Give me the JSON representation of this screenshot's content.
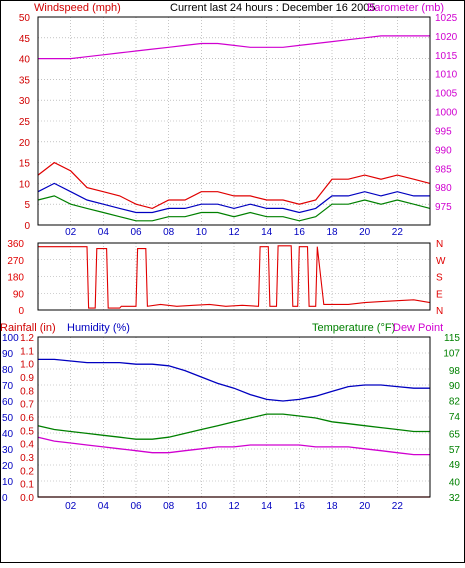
{
  "colors": {
    "wind": "#d00000",
    "wind_gust": "#e00000",
    "wind_avg": "#0000c0",
    "wind_low": "#008000",
    "barometer": "#d000d0",
    "direction": "#e00000",
    "humidity": "#0000c0",
    "temperature": "#008000",
    "dewpoint": "#d000d0",
    "rainfall": "#d00000",
    "grid": "#a0a0a0",
    "frame": "#000000"
  },
  "header": {
    "windspeed_label": "Windspeed (mph)",
    "title": "Current last 24 hours : December 16 2005",
    "barometer_label": "Barometer (mb)"
  },
  "direction_labels": [
    "N",
    "W",
    "S",
    "E",
    "N"
  ],
  "bottom_labels": {
    "rainfall": "Rainfall (in)",
    "humidity": "Humidity (%)",
    "temperature": "Temperature (°F)",
    "dewpoint": "Dew Point"
  },
  "chart_data": [
    {
      "type": "line",
      "title": "Current last 24 hours : December 16 2005",
      "x_ticks": [
        "02",
        "04",
        "06",
        "08",
        "10",
        "12",
        "14",
        "16",
        "18",
        "20",
        "22"
      ],
      "x_range_hours": [
        0,
        24
      ],
      "left_axis": {
        "label": "Windspeed (mph)",
        "ylim": [
          0,
          50
        ],
        "ticks": [
          0,
          5,
          10,
          15,
          20,
          25,
          30,
          35,
          40,
          45,
          50
        ]
      },
      "right_axis": {
        "label": "Barometer (mb)",
        "ylim": [
          970,
          1025
        ],
        "ticks": [
          975,
          980,
          985,
          990,
          995,
          1000,
          1005,
          1010,
          1015,
          1020,
          1025
        ]
      },
      "series": [
        {
          "name": "Windspeed (mph)",
          "axis": "left",
          "color_key": "wind_gust",
          "hours": [
            0,
            1,
            2,
            3,
            4,
            5,
            6,
            7,
            8,
            9,
            10,
            11,
            12,
            13,
            14,
            15,
            16,
            17,
            18,
            19,
            20,
            21,
            22,
            23,
            24
          ],
          "values": [
            12,
            15,
            13,
            9,
            8,
            7,
            5,
            4,
            6,
            6,
            8,
            8,
            7,
            7,
            6,
            6,
            5,
            6,
            11,
            11,
            12,
            11,
            12,
            11,
            10
          ]
        },
        {
          "axis": "left",
          "color_key": "wind_avg",
          "hours": [
            0,
            1,
            2,
            3,
            4,
            5,
            6,
            7,
            8,
            9,
            10,
            11,
            12,
            13,
            14,
            15,
            16,
            17,
            18,
            19,
            20,
            21,
            22,
            23,
            24
          ],
          "values": [
            8,
            10,
            8,
            6,
            5,
            4,
            3,
            3,
            4,
            4,
            5,
            5,
            4,
            5,
            4,
            4,
            3,
            4,
            7,
            7,
            8,
            7,
            8,
            7,
            7
          ]
        },
        {
          "axis": "left",
          "color_key": "wind_low",
          "hours": [
            0,
            1,
            2,
            3,
            4,
            5,
            6,
            7,
            8,
            9,
            10,
            11,
            12,
            13,
            14,
            15,
            16,
            17,
            18,
            19,
            20,
            21,
            22,
            23,
            24
          ],
          "values": [
            6,
            7,
            5,
            4,
            3,
            2,
            1,
            1,
            2,
            2,
            3,
            3,
            2,
            3,
            2,
            2,
            1,
            2,
            5,
            5,
            6,
            5,
            6,
            5,
            4
          ]
        },
        {
          "name": "Barometer (mb)",
          "axis": "right",
          "color_key": "barometer",
          "hours": [
            0,
            1,
            2,
            3,
            4,
            5,
            6,
            7,
            8,
            9,
            10,
            11,
            12,
            13,
            14,
            15,
            16,
            17,
            18,
            19,
            20,
            21,
            22,
            23,
            24
          ],
          "values": [
            1014,
            1014,
            1014,
            1014.5,
            1015,
            1015.5,
            1016,
            1016.5,
            1017,
            1017.5,
            1018,
            1018,
            1017.5,
            1017,
            1017,
            1017,
            1017.5,
            1018,
            1018.5,
            1019,
            1019.5,
            1020,
            1020,
            1020,
            1020
          ]
        }
      ]
    },
    {
      "type": "line",
      "x_ticks": [
        "02",
        "04",
        "06",
        "08",
        "10",
        "12",
        "14",
        "16",
        "18",
        "20",
        "22"
      ],
      "x_range_hours": [
        0,
        24
      ],
      "left_axis": {
        "ylim": [
          0,
          360
        ],
        "ticks": [
          0,
          90,
          180,
          270,
          360
        ]
      },
      "right_axis": {
        "ticks": [
          "N",
          "W",
          "S",
          "E",
          "N"
        ]
      },
      "series": [
        {
          "color_key": "direction",
          "hours": [
            0,
            3,
            3.1,
            3.5,
            3.6,
            4.2,
            4.3,
            5.0,
            5.1,
            6.0,
            6.1,
            6.6,
            6.7,
            7.5,
            8.5,
            9.5,
            10.5,
            11.5,
            12.5,
            13.5,
            13.6,
            14.1,
            14.2,
            14.6,
            14.7,
            15.5,
            15.6,
            15.9,
            16.0,
            16.5,
            16.6,
            17.0,
            17.1,
            17.5,
            19.0,
            20.0,
            21.0,
            22.0,
            23.0,
            24.0
          ],
          "values": [
            340,
            340,
            10,
            10,
            330,
            330,
            10,
            10,
            20,
            20,
            330,
            330,
            20,
            30,
            20,
            25,
            30,
            20,
            25,
            20,
            340,
            340,
            20,
            20,
            345,
            345,
            20,
            20,
            340,
            340,
            20,
            20,
            340,
            30,
            30,
            40,
            45,
            50,
            55,
            40
          ]
        }
      ]
    },
    {
      "type": "line",
      "x_ticks": [
        "02",
        "04",
        "06",
        "08",
        "10",
        "12",
        "14",
        "16",
        "18",
        "20",
        "22"
      ],
      "x_range_hours": [
        0,
        24
      ],
      "humidity_axis": {
        "label": "Humidity (%)",
        "ylim": [
          0,
          100
        ],
        "ticks": [
          0,
          10,
          20,
          30,
          40,
          50,
          60,
          70,
          80,
          90,
          100
        ]
      },
      "rainfall_axis": {
        "label": "Rainfall (in)",
        "ylim": [
          0.0,
          1.2
        ],
        "ticks": [
          "0.0",
          "0.1",
          "0.2",
          "0.3",
          "0.4",
          "0.5",
          "0.6",
          "0.7",
          "0.8",
          "0.9",
          "1.0",
          "1.1",
          "1.2"
        ]
      },
      "temperature_axis": {
        "label": "Temperature (°F)",
        "ylim": [
          32,
          115
        ],
        "ticks": [
          32,
          40,
          49,
          57,
          65,
          74,
          82,
          90,
          98,
          107,
          115
        ]
      },
      "series": [
        {
          "name": "Humidity (%)",
          "axis": "humidity",
          "color_key": "humidity",
          "hours": [
            0,
            1,
            2,
            3,
            4,
            5,
            6,
            7,
            8,
            9,
            10,
            11,
            12,
            13,
            14,
            15,
            16,
            17,
            18,
            19,
            20,
            21,
            22,
            23,
            24
          ],
          "values": [
            86,
            86,
            85,
            84,
            84,
            84,
            83,
            83,
            82,
            79,
            75,
            71,
            68,
            64,
            61,
            60,
            61,
            63,
            66,
            69,
            70,
            70,
            69,
            68,
            68
          ]
        },
        {
          "name": "Temperature (°F)",
          "axis": "temperature",
          "color_key": "temperature",
          "hours": [
            0,
            1,
            2,
            3,
            4,
            5,
            6,
            7,
            8,
            9,
            10,
            11,
            12,
            13,
            14,
            15,
            16,
            17,
            18,
            19,
            20,
            21,
            22,
            23,
            24
          ],
          "values": [
            69,
            67,
            66,
            65,
            64,
            63,
            62,
            62,
            63,
            65,
            67,
            69,
            71,
            73,
            75,
            75,
            74,
            73,
            71,
            70,
            69,
            68,
            67,
            66,
            66
          ]
        },
        {
          "name": "Dew Point",
          "axis": "temperature",
          "color_key": "dewpoint",
          "hours": [
            0,
            1,
            2,
            3,
            4,
            5,
            6,
            7,
            8,
            9,
            10,
            11,
            12,
            13,
            14,
            15,
            16,
            17,
            18,
            19,
            20,
            21,
            22,
            23,
            24
          ],
          "values": [
            63,
            61,
            60,
            59,
            58,
            57,
            56,
            55,
            55,
            56,
            57,
            58,
            58,
            59,
            59,
            59,
            59,
            58,
            58,
            58,
            57,
            56,
            55,
            54,
            54
          ]
        },
        {
          "name": "Rainfall (in)",
          "axis": "rainfall",
          "color_key": "rainfall",
          "hours": [
            0,
            24
          ],
          "values": [
            0.0,
            0.0
          ]
        }
      ]
    }
  ]
}
